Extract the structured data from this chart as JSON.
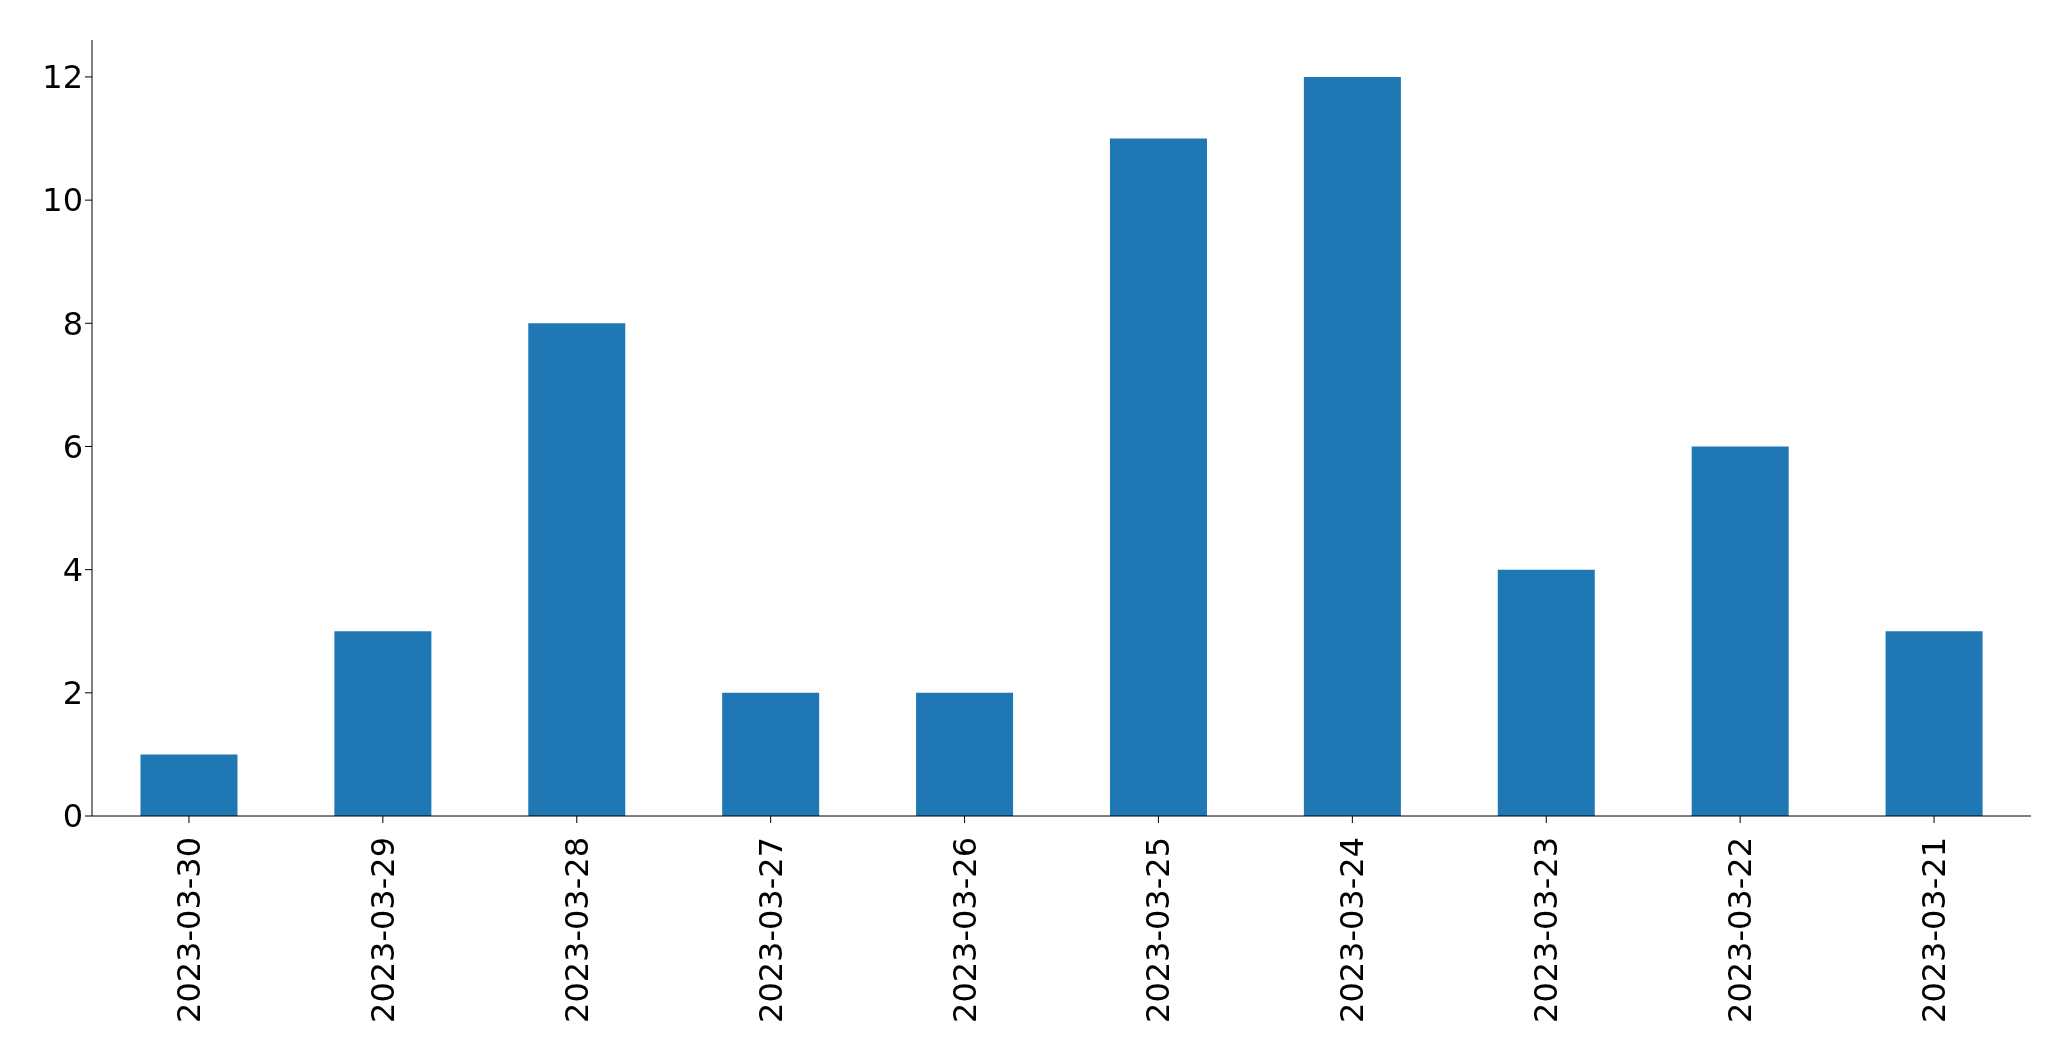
{
  "chart_data": {
    "type": "bar",
    "categories": [
      "2023-03-30",
      "2023-03-29",
      "2023-03-28",
      "2023-03-27",
      "2023-03-26",
      "2023-03-25",
      "2023-03-24",
      "2023-03-23",
      "2023-03-22",
      "2023-03-21"
    ],
    "values": [
      1,
      3,
      8,
      2,
      2,
      11,
      12,
      4,
      6,
      3
    ],
    "color": "#1f77b4",
    "ylim": [
      0,
      12.6
    ],
    "yticks": [
      0,
      2,
      4,
      6,
      8,
      10,
      12
    ]
  }
}
